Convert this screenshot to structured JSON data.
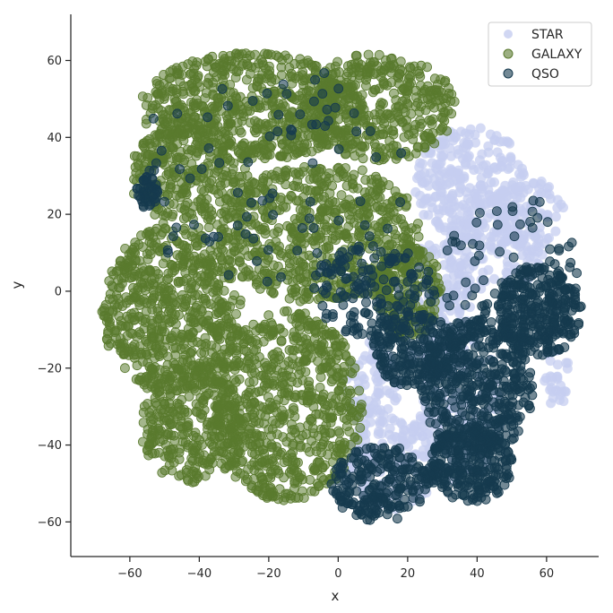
{
  "chart_data": {
    "type": "scatter",
    "title": "",
    "xlabel": "x",
    "ylabel": "y",
    "xlim": [
      -77,
      75
    ],
    "ylim": [
      -69,
      72
    ],
    "xticks": [
      -60,
      -40,
      -20,
      0,
      20,
      40,
      60
    ],
    "yticks": [
      -60,
      -40,
      -20,
      0,
      20,
      40,
      60
    ],
    "xtick_labels": [
      "−60",
      "−40",
      "−20",
      "0",
      "20",
      "40",
      "60"
    ],
    "ytick_labels": [
      "−60",
      "−40",
      "−20",
      "0",
      "20",
      "40",
      "60"
    ],
    "grid": false,
    "legend_position": "top-right",
    "series": [
      {
        "name": "STAR",
        "color": "#c5cdf0",
        "regions": [
          {
            "cx": 38,
            "cy": 28,
            "rx": 16,
            "ry": 15,
            "n": 260
          },
          {
            "cx": 55,
            "cy": 20,
            "rx": 10,
            "ry": 10,
            "n": 90
          },
          {
            "cx": 45,
            "cy": 10,
            "rx": 14,
            "ry": 10,
            "n": 120
          },
          {
            "cx": 28,
            "cy": -5,
            "rx": 10,
            "ry": 18,
            "n": 160
          },
          {
            "cx": 10,
            "cy": -25,
            "rx": 8,
            "ry": 12,
            "n": 90
          },
          {
            "cx": 15,
            "cy": -45,
            "rx": 14,
            "ry": 12,
            "n": 150
          },
          {
            "cx": 63,
            "cy": -22,
            "rx": 4,
            "ry": 8,
            "n": 30
          },
          {
            "cx": 35,
            "cy": -30,
            "rx": 12,
            "ry": 20,
            "n": 150
          }
        ]
      },
      {
        "name": "GALAXY",
        "color": "#5a7a2e",
        "regions": [
          {
            "cx": -25,
            "cy": 48,
            "rx": 32,
            "ry": 14,
            "n": 650
          },
          {
            "cx": 12,
            "cy": 48,
            "rx": 22,
            "ry": 14,
            "n": 400
          },
          {
            "cx": -42,
            "cy": 30,
            "rx": 18,
            "ry": 14,
            "n": 300
          },
          {
            "cx": -5,
            "cy": 15,
            "rx": 30,
            "ry": 18,
            "n": 650
          },
          {
            "cx": -48,
            "cy": -5,
            "rx": 20,
            "ry": 22,
            "n": 650
          },
          {
            "cx": -15,
            "cy": -30,
            "rx": 22,
            "ry": 25,
            "n": 700
          },
          {
            "cx": -42,
            "cy": -35,
            "rx": 15,
            "ry": 15,
            "n": 300
          },
          {
            "cx": 20,
            "cy": 0,
            "rx": 10,
            "ry": 12,
            "n": 180
          }
        ]
      },
      {
        "name": "QSO",
        "color": "#163a4e",
        "regions": [
          {
            "cx": 58,
            "cy": -5,
            "rx": 12,
            "ry": 12,
            "n": 300
          },
          {
            "cx": 40,
            "cy": -25,
            "rx": 16,
            "ry": 18,
            "n": 450
          },
          {
            "cx": 38,
            "cy": -45,
            "rx": 12,
            "ry": 10,
            "n": 260
          },
          {
            "cx": 12,
            "cy": -50,
            "rx": 14,
            "ry": 10,
            "n": 220
          },
          {
            "cx": 22,
            "cy": -15,
            "rx": 12,
            "ry": 10,
            "n": 200
          },
          {
            "cx": 10,
            "cy": 0,
            "rx": 18,
            "ry": 12,
            "n": 150
          },
          {
            "cx": -55,
            "cy": 26,
            "rx": 3,
            "ry": 4,
            "n": 40
          },
          {
            "cx": 50,
            "cy": 5,
            "rx": 20,
            "ry": 20,
            "n": 80
          },
          {
            "cx": -20,
            "cy": 30,
            "rx": 40,
            "ry": 30,
            "n": 90
          }
        ]
      }
    ]
  }
}
